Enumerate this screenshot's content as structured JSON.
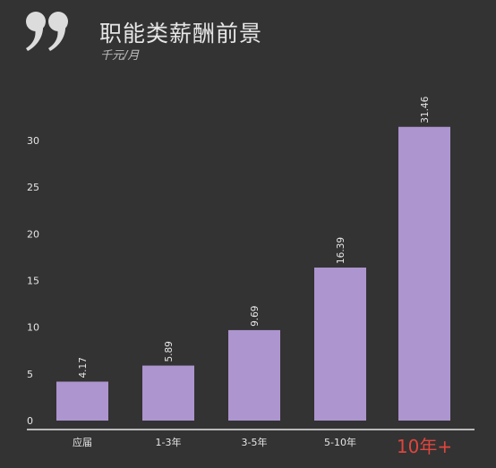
{
  "header": {
    "title": "职能类薪酬前景",
    "subtitle": "千元/月"
  },
  "colors": {
    "background": "#333333",
    "bar": "#ad95cf",
    "text": "#e6e6e6",
    "highlight": "#e0453e"
  },
  "chart_data": {
    "type": "bar",
    "title": "职能类薪酬前景",
    "subtitle": "千元/月",
    "categories": [
      "应届",
      "1-3年",
      "3-5年",
      "5-10年",
      "10年+"
    ],
    "values": [
      4.17,
      5.89,
      9.69,
      16.39,
      31.46
    ],
    "value_labels": [
      "4.17",
      "5.89",
      "9.69",
      "16.39",
      "31.46"
    ],
    "highlight_category": "10年+",
    "yticks": [
      "0",
      "5",
      "10",
      "15",
      "20",
      "25",
      "30"
    ],
    "ylim": [
      0,
      30
    ],
    "grid": false,
    "legend": "none"
  }
}
